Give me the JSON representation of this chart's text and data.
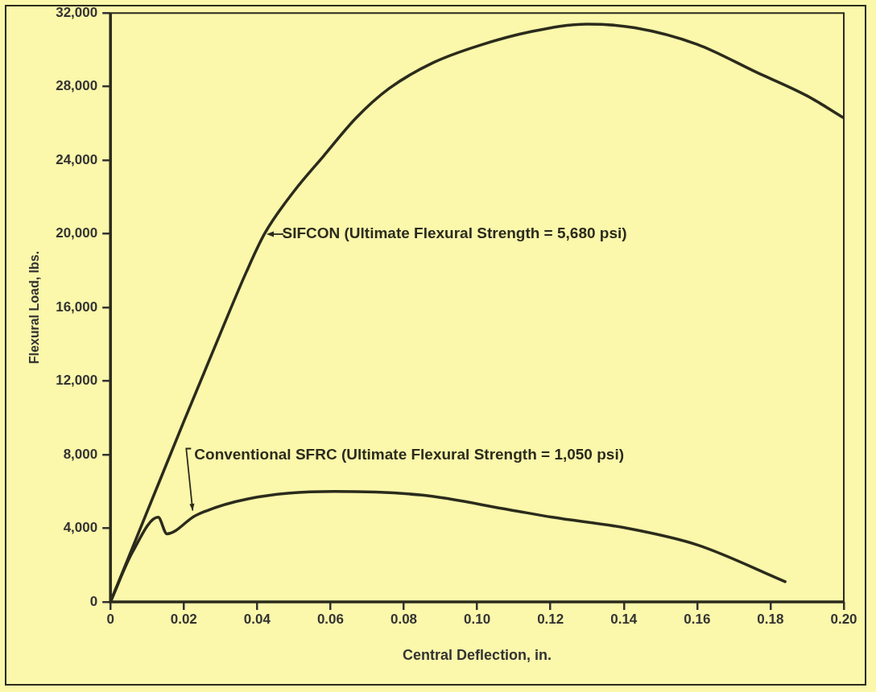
{
  "chart_data": {
    "type": "line",
    "xlabel": "Central Deflection, in.",
    "ylabel": "Flexural Load, lbs.",
    "xlim": [
      0,
      0.2
    ],
    "ylim": [
      0,
      32000
    ],
    "xticks": [
      {
        "value": 0,
        "label": "0"
      },
      {
        "value": 0.02,
        "label": "0.02"
      },
      {
        "value": 0.04,
        "label": "0.04"
      },
      {
        "value": 0.06,
        "label": "0.06"
      },
      {
        "value": 0.08,
        "label": "0.08"
      },
      {
        "value": 0.1,
        "label": "0.10"
      },
      {
        "value": 0.12,
        "label": "0.12"
      },
      {
        "value": 0.14,
        "label": "0.14"
      },
      {
        "value": 0.16,
        "label": "0.16"
      },
      {
        "value": 0.18,
        "label": "0.18"
      },
      {
        "value": 0.2,
        "label": "0.20"
      }
    ],
    "yticks": [
      {
        "value": 0,
        "label": "0"
      },
      {
        "value": 4000,
        "label": "4,000"
      },
      {
        "value": 8000,
        "label": "8,000"
      },
      {
        "value": 12000,
        "label": "12,000"
      },
      {
        "value": 16000,
        "label": "16,000"
      },
      {
        "value": 20000,
        "label": "20,000"
      },
      {
        "value": 24000,
        "label": "24,000"
      },
      {
        "value": 28000,
        "label": "28,000"
      },
      {
        "value": 32000,
        "label": "32,000"
      }
    ],
    "marker": "none",
    "line_style": "solid",
    "series": [
      {
        "color": "#2b2b1c",
        "x": [
          0,
          0.01,
          0.02,
          0.03,
          0.037,
          0.042,
          0.05,
          0.058,
          0.067,
          0.076,
          0.088,
          0.1,
          0.115,
          0.13,
          0.143,
          0.16,
          0.176,
          0.19,
          0.2
        ],
        "values": [
          0,
          4900,
          9800,
          14600,
          17900,
          20000,
          22300,
          24200,
          26300,
          27900,
          29300,
          30200,
          31000,
          31400,
          31200,
          30300,
          28800,
          27500,
          26300
        ]
      },
      {
        "color": "#2b2b1c",
        "x": [
          0,
          0.006,
          0.013,
          0.0154,
          0.0233,
          0.0375,
          0.061,
          0.085,
          0.109,
          0.1205,
          0.141,
          0.16,
          0.184
        ],
        "values": [
          0,
          2700,
          4600,
          3700,
          4700,
          5600,
          6000,
          5800,
          5000,
          4600,
          4000,
          3100,
          1100
        ]
      }
    ],
    "annotations": [
      {
        "text": "SIFCON (Ultimate Flexural Strength = 5,680 psi)",
        "x": 0.042,
        "y": 20000
      },
      {
        "text": "Conventional SFRC (Ultimate Flexural Strength = 1,050 psi)",
        "x": 0.0233,
        "y": 4700
      }
    ]
  }
}
